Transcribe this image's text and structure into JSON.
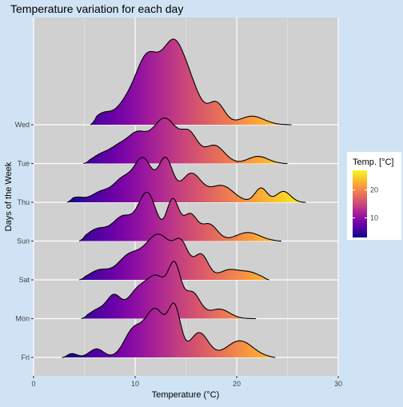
{
  "chart_data": {
    "type": "ridgeline",
    "title": "Temperature variation for each day",
    "xlabel": "Temperature (°C)",
    "ylabel": "Days of the Week",
    "xlim": [
      0,
      30
    ],
    "x_ticks": [
      0,
      10,
      20,
      30
    ],
    "grid": true,
    "colormap": "plasma",
    "legend": {
      "title": "Temp. [°C]",
      "position": "right",
      "ticks": [
        10,
        20
      ],
      "range": [
        3,
        27
      ]
    },
    "categories": [
      "Fri",
      "Mon",
      "Sat",
      "Sun",
      "Thu",
      "Tue",
      "Wed"
    ],
    "series": [
      {
        "name": "Fri",
        "range": [
          2.8,
          23.8
        ],
        "peaks": [
          [
            3.8,
            0.08,
            0.5
          ],
          [
            6.2,
            0.18,
            0.7
          ],
          [
            9.8,
            0.55,
            0.9
          ],
          [
            12,
            1.0,
            1.0
          ],
          [
            13.9,
            0.95,
            0.6
          ],
          [
            16.3,
            0.52,
            0.9
          ],
          [
            20.3,
            0.35,
            1.3
          ]
        ]
      },
      {
        "name": "Mon",
        "range": [
          4.7,
          21.9
        ],
        "peaks": [
          [
            6.3,
            0.18,
            0.8
          ],
          [
            7.9,
            0.45,
            0.7
          ],
          [
            10.2,
            0.55,
            1.0
          ],
          [
            12.2,
            0.82,
            1.0
          ],
          [
            13.9,
            0.95,
            0.6
          ],
          [
            15.6,
            0.55,
            0.8
          ],
          [
            18.3,
            0.2,
            1.0
          ]
        ]
      },
      {
        "name": "Sat",
        "range": [
          4.5,
          23.2
        ],
        "peaks": [
          [
            6.5,
            0.2,
            1.0
          ],
          [
            9.3,
            0.45,
            1.1
          ],
          [
            12.3,
            0.95,
            1.4
          ],
          [
            14.6,
            0.58,
            0.7
          ],
          [
            16.5,
            0.52,
            0.7
          ],
          [
            19.2,
            0.2,
            1.0
          ],
          [
            21.3,
            0.15,
            1.0
          ]
        ]
      },
      {
        "name": "Sun",
        "range": [
          4.5,
          24.4
        ],
        "peaks": [
          [
            6.3,
            0.25,
            1.0
          ],
          [
            8.8,
            0.5,
            1.0
          ],
          [
            11.2,
            1.0,
            0.9
          ],
          [
            13.7,
            0.85,
            0.6
          ],
          [
            15.4,
            0.55,
            0.7
          ],
          [
            17.3,
            0.35,
            0.8
          ],
          [
            21.1,
            0.18,
            1.2
          ]
        ]
      },
      {
        "name": "Thu",
        "range": [
          3.3,
          26.8
        ],
        "peaks": [
          [
            4.2,
            0.1,
            0.7
          ],
          [
            6.7,
            0.22,
            1.0
          ],
          [
            8.8,
            0.45,
            0.9
          ],
          [
            10.8,
            0.9,
            0.9
          ],
          [
            13,
            0.88,
            0.7
          ],
          [
            15.5,
            0.6,
            1.0
          ],
          [
            18.5,
            0.35,
            1.2
          ],
          [
            22.4,
            0.3,
            0.6
          ],
          [
            24.6,
            0.23,
            0.7
          ]
        ]
      },
      {
        "name": "Tue",
        "range": [
          4.9,
          25.0
        ],
        "peaks": [
          [
            6.5,
            0.15,
            0.8
          ],
          [
            8.4,
            0.35,
            1.0
          ],
          [
            10.2,
            0.5,
            0.9
          ],
          [
            12.9,
            0.95,
            1.3
          ],
          [
            15.4,
            0.52,
            0.8
          ],
          [
            17.8,
            0.38,
            1.0
          ],
          [
            22.1,
            0.15,
            1.0
          ]
        ]
      },
      {
        "name": "Wed",
        "range": [
          5.6,
          25.4
        ],
        "peaks": [
          [
            6.8,
            0.22,
            0.8
          ],
          [
            8.9,
            0.33,
            1.0
          ],
          [
            11.2,
            1.4,
            1.2
          ],
          [
            13.8,
            1.55,
            1.1
          ],
          [
            15.6,
            0.6,
            1.0
          ],
          [
            18,
            0.45,
            0.8
          ],
          [
            21.5,
            0.18,
            1.2
          ]
        ]
      }
    ]
  }
}
